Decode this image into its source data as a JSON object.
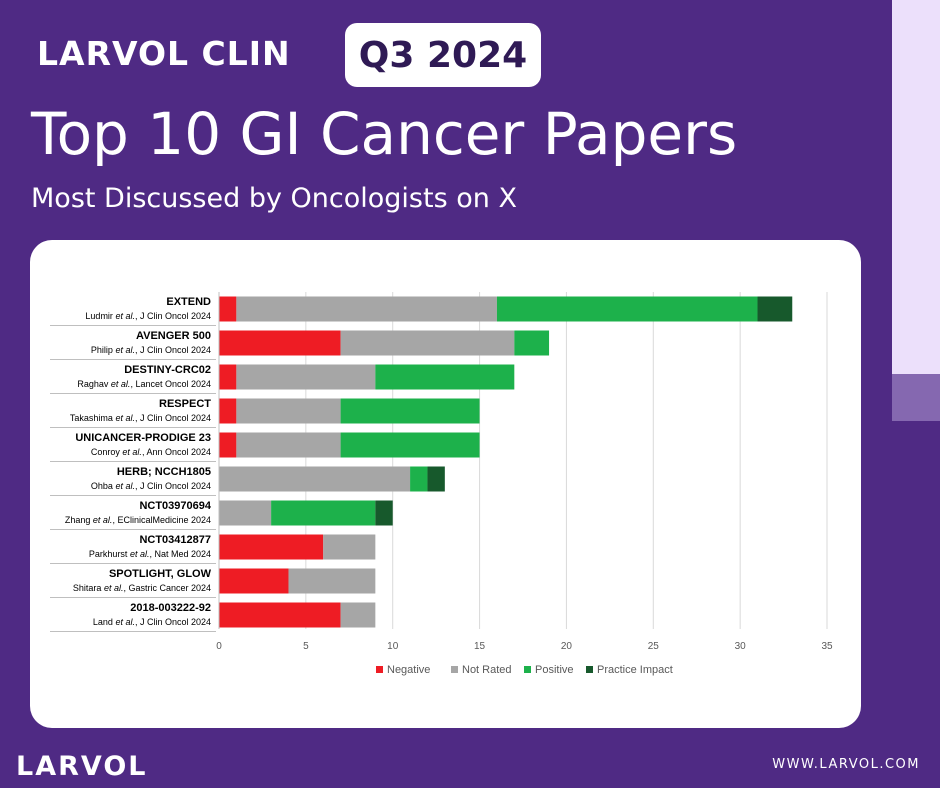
{
  "header": {
    "brand": "LARVOL CLIN",
    "quarter": "Q3 2024",
    "title": "Top 10 GI Cancer Papers",
    "subtitle": "Most Discussed by Oncologists on X"
  },
  "footer": {
    "logo": "LARVOL",
    "url": "WWW.LARVOL.COM"
  },
  "colors": {
    "background": "#4f2a84",
    "Negative": "#ee1c24",
    "Not Rated": "#a6a6a6",
    "Positive": "#1db14b",
    "Practice Impact": "#17592c"
  },
  "chart_data": {
    "type": "bar",
    "orientation": "horizontal",
    "stacked": true,
    "categories": [
      {
        "name": "EXTEND",
        "author": "Ludmir",
        "etal": "et al.",
        "journal": ", J Clin Oncol 2024"
      },
      {
        "name": "AVENGER 500",
        "author": "Philip",
        "etal": "et al.",
        "journal": ", J Clin Oncol 2024"
      },
      {
        "name": "DESTINY-CRC02",
        "author": "Raghav",
        "etal": "et al.",
        "journal": ",  Lancet Oncol 2024"
      },
      {
        "name": "RESPECT",
        "author": "Takashima",
        "etal": "et al.",
        "journal": ", J Clin Oncol 2024"
      },
      {
        "name": "UNICANCER-PRODIGE 23",
        "author": "Conroy",
        "etal": "et al.",
        "journal": ", Ann Oncol 2024"
      },
      {
        "name": "HERB; NCCH1805",
        "author": "Ohba",
        "etal": "et al.",
        "journal": ", J Clin Oncol 2024"
      },
      {
        "name": "NCT03970694",
        "author": "Zhang",
        "etal": "et al.",
        "journal": ", EClinicalMedicine 2024"
      },
      {
        "name": "NCT03412877",
        "author": "Parkhurst",
        "etal": "et al.",
        "journal": ",  Nat Med 2024"
      },
      {
        "name": "SPOTLIGHT, GLOW",
        "author": "Shitara",
        "etal": "et al.",
        "journal": ",  Gastric Cancer 2024"
      },
      {
        "name": "2018-003222-92",
        "author": "Land",
        "etal": "et al.",
        "journal": ", J Clin Oncol 2024"
      }
    ],
    "series": [
      {
        "name": "Negative",
        "values": [
          1,
          7,
          1,
          1,
          1,
          0,
          0,
          6,
          4,
          7
        ]
      },
      {
        "name": "Not Rated",
        "values": [
          15,
          10,
          8,
          6,
          6,
          11,
          3,
          3,
          5,
          2
        ]
      },
      {
        "name": "Positive",
        "values": [
          15,
          2,
          8,
          8,
          8,
          1,
          6,
          0,
          0,
          0
        ]
      },
      {
        "name": "Practice Impact",
        "values": [
          2,
          0,
          0,
          0,
          0,
          1,
          1,
          0,
          0,
          0
        ]
      }
    ],
    "xlim": [
      0,
      35
    ],
    "xticks": [
      0,
      5,
      10,
      15,
      20,
      25,
      30,
      35
    ],
    "grid": true,
    "legend_position": "bottom"
  }
}
